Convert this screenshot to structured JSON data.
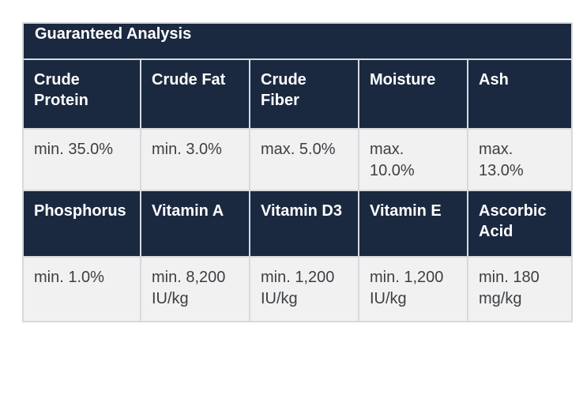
{
  "colors": {
    "header_bg": "#1b2940",
    "header_text": "#ffffff",
    "value_bg": "#f1f1f2",
    "value_text": "#3c4043",
    "border": "#d6dade",
    "page_bg": "#ffffff"
  },
  "chart_data": {
    "type": "table",
    "title": "Guaranteed Analysis",
    "sections": [
      {
        "headers": [
          "Crude Protein",
          "Crude Fat",
          "Crude Fiber",
          "Moisture",
          "Ash"
        ],
        "values": [
          "min. 35.0%",
          "min. 3.0%",
          "max. 5.0%",
          "max. 10.0%",
          "max. 13.0%"
        ]
      },
      {
        "headers": [
          "Phosphorus",
          "Vitamin A",
          "Vitamin D3",
          "Vitamin E",
          "Ascorbic Acid"
        ],
        "values": [
          "min. 1.0%",
          "min. 8,200 IU/kg",
          "min. 1,200 IU/kg",
          "min. 1,200 IU/kg",
          "min. 180 mg/kg"
        ]
      }
    ]
  }
}
